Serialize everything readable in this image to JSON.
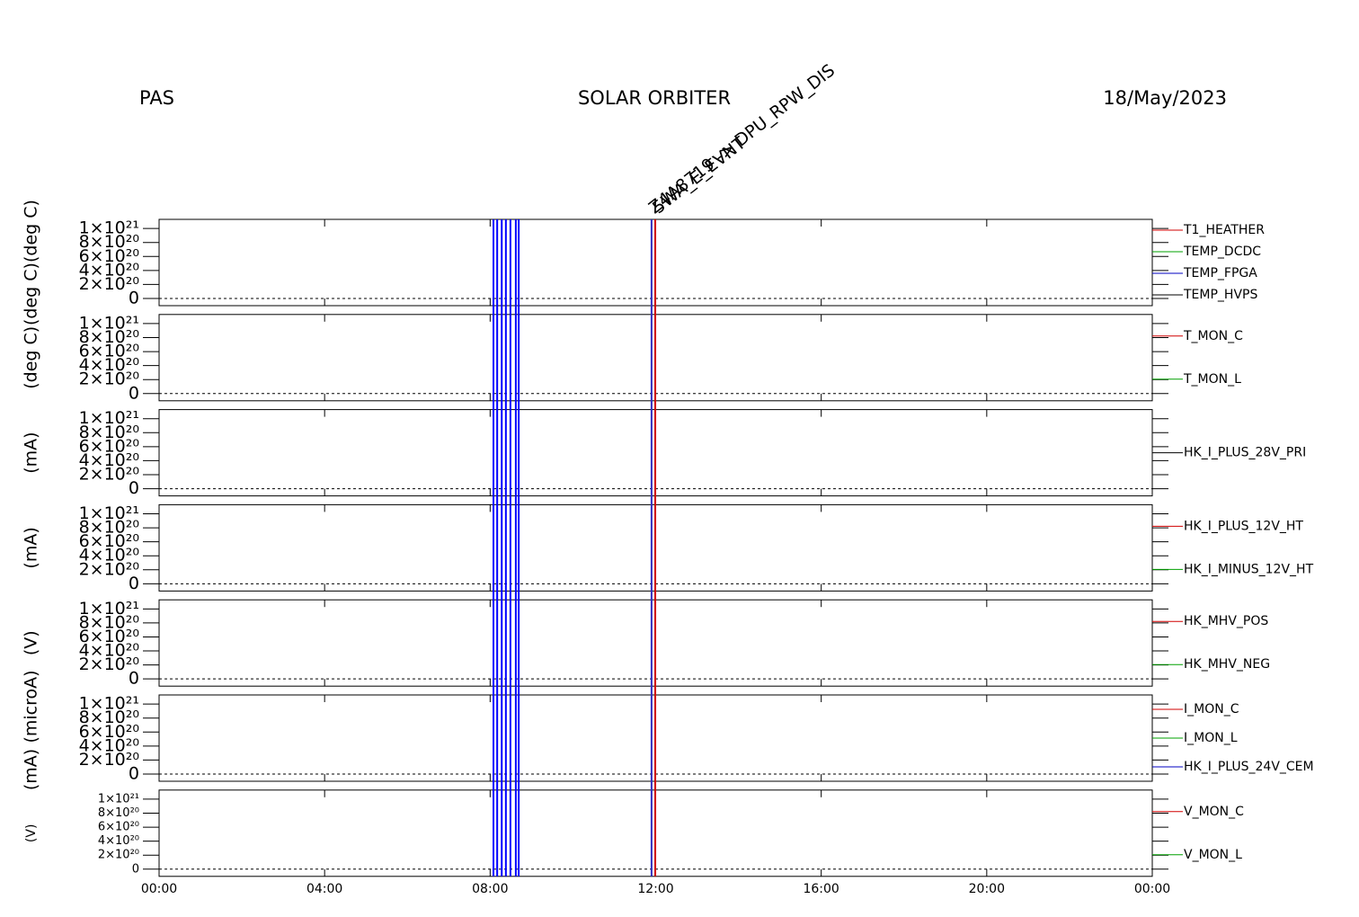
{
  "header": {
    "left": "PAS",
    "center": "SOLAR ORBITER",
    "right": "18/May/2023"
  },
  "events": [
    {
      "x": 8.08,
      "color": "#0000ff"
    },
    {
      "x": 8.17,
      "color": "#0000ff"
    },
    {
      "x": 8.28,
      "color": "#0000ff"
    },
    {
      "x": 8.38,
      "color": "#0000ff"
    },
    {
      "x": 8.49,
      "color": "#0000ff"
    },
    {
      "x": 8.62,
      "color": "#0000ff"
    },
    {
      "x": 8.69,
      "color": "#0000ff"
    },
    {
      "x": 11.9,
      "color": "#3030c0",
      "label": "Z4A8719 -> DPU_RPW_DIS"
    },
    {
      "x": 11.99,
      "color": "#d00000",
      "label": "5WA_E_EVNT"
    }
  ],
  "chart_data": [
    {
      "type": "line",
      "ylabels": [
        "(deg C)",
        "(deg C)"
      ],
      "ylim": [
        -1.03e+20,
        1.13e+21
      ],
      "yticks": [
        0,
        {
          "value": 2e+20,
          "label": "2×10²⁰"
        },
        {
          "value": 4e+20,
          "label": "4×10²⁰"
        },
        {
          "value": 6e+20,
          "label": "6×10²⁰"
        },
        {
          "value": 8e+20,
          "label": "8×10²⁰"
        },
        {
          "value": 1e+21,
          "label": "1×10²¹"
        }
      ],
      "series": [
        {
          "name": "T1_HEATHER",
          "color": "#d00000"
        },
        {
          "name": "TEMP_DCDC",
          "color": "#00a000"
        },
        {
          "name": "TEMP_FPGA",
          "color": "#0000c0"
        },
        {
          "name": "TEMP_HVPS",
          "color": "#000000"
        }
      ]
    },
    {
      "type": "line",
      "ylabels": [
        "(deg C)"
      ],
      "ylim": [
        -1.03e+20,
        1.13e+21
      ],
      "yticks": [
        0,
        {
          "value": 2e+20,
          "label": "2×10²⁰"
        },
        {
          "value": 4e+20,
          "label": "4×10²⁰"
        },
        {
          "value": 6e+20,
          "label": "6×10²⁰"
        },
        {
          "value": 8e+20,
          "label": "8×10²⁰"
        },
        {
          "value": 1e+21,
          "label": "1×10²¹"
        }
      ],
      "series": [
        {
          "name": "T_MON_C",
          "color": "#d00000"
        },
        {
          "name": "T_MON_L",
          "color": "#00a000"
        }
      ]
    },
    {
      "type": "line",
      "ylabels": [
        "(mA)"
      ],
      "ylim": [
        -1.03e+20,
        1.13e+21
      ],
      "yticks": [
        0,
        {
          "value": 2e+20,
          "label": "2×10²⁰"
        },
        {
          "value": 4e+20,
          "label": "4×10²⁰"
        },
        {
          "value": 6e+20,
          "label": "6×10²⁰"
        },
        {
          "value": 8e+20,
          "label": "8×10²⁰"
        },
        {
          "value": 1e+21,
          "label": "1×10²¹"
        }
      ],
      "series": [
        {
          "name": "HK_I_PLUS_28V_PRI",
          "color": "#000000"
        }
      ]
    },
    {
      "type": "line",
      "ylabels": [
        "(mA)"
      ],
      "ylim": [
        -1.03e+20,
        1.13e+21
      ],
      "yticks": [
        0,
        {
          "value": 2e+20,
          "label": "2×10²⁰"
        },
        {
          "value": 4e+20,
          "label": "4×10²⁰"
        },
        {
          "value": 6e+20,
          "label": "6×10²⁰"
        },
        {
          "value": 8e+20,
          "label": "8×10²⁰"
        },
        {
          "value": 1e+21,
          "label": "1×10²¹"
        }
      ],
      "series": [
        {
          "name": "HK_I_PLUS_12V_HT",
          "color": "#d00000"
        },
        {
          "name": "HK_I_MINUS_12V_HT",
          "color": "#00a000"
        }
      ]
    },
    {
      "type": "line",
      "ylabels": [
        "(V)"
      ],
      "ylim": [
        -1.03e+20,
        1.13e+21
      ],
      "yticks": [
        0,
        {
          "value": 2e+20,
          "label": "2×10²⁰"
        },
        {
          "value": 4e+20,
          "label": "4×10²⁰"
        },
        {
          "value": 6e+20,
          "label": "6×10²⁰"
        },
        {
          "value": 8e+20,
          "label": "8×10²⁰"
        },
        {
          "value": 1e+21,
          "label": "1×10²¹"
        }
      ],
      "series": [
        {
          "name": "HK_MHV_POS",
          "color": "#d00000"
        },
        {
          "name": "HK_MHV_NEG",
          "color": "#00a000"
        }
      ]
    },
    {
      "type": "line",
      "ylabels": [
        "(microA)",
        "(mA)"
      ],
      "ylim": [
        -1.03e+20,
        1.13e+21
      ],
      "yticks": [
        0,
        {
          "value": 2e+20,
          "label": "2×10²⁰"
        },
        {
          "value": 4e+20,
          "label": "4×10²⁰"
        },
        {
          "value": 6e+20,
          "label": "6×10²⁰"
        },
        {
          "value": 8e+20,
          "label": "8×10²⁰"
        },
        {
          "value": 1e+21,
          "label": "1×10²¹"
        }
      ],
      "series": [
        {
          "name": "I_MON_C",
          "color": "#d00000"
        },
        {
          "name": "I_MON_L",
          "color": "#00a000"
        },
        {
          "name": "HK_I_PLUS_24V_CEM",
          "color": "#0000c0"
        }
      ]
    },
    {
      "type": "line",
      "ylabels": [
        "(V)"
      ],
      "ylim": [
        -1.03e+20,
        1.13e+21
      ],
      "yticks": [
        0,
        {
          "value": 2e+20,
          "label": "2×10²⁰"
        },
        {
          "value": 4e+20,
          "label": "4×10²⁰"
        },
        {
          "value": 6e+20,
          "label": "6×10²⁰"
        },
        {
          "value": 8e+20,
          "label": "8×10²⁰"
        },
        {
          "value": 1e+21,
          "label": "1×10²¹"
        }
      ],
      "series": [
        {
          "name": "V_MON_C",
          "color": "#d00000"
        },
        {
          "name": "V_MON_L",
          "color": "#00a000"
        }
      ],
      "xlim": [
        0,
        24
      ],
      "xticks": [
        {
          "value": 0,
          "label": "00:00"
        },
        {
          "value": 4,
          "label": "04:00"
        },
        {
          "value": 8,
          "label": "08:00"
        },
        {
          "value": 12,
          "label": "12:00"
        },
        {
          "value": 16,
          "label": "16:00"
        },
        {
          "value": 20,
          "label": "20:00"
        },
        {
          "value": 24,
          "label": "00:00"
        }
      ]
    }
  ]
}
